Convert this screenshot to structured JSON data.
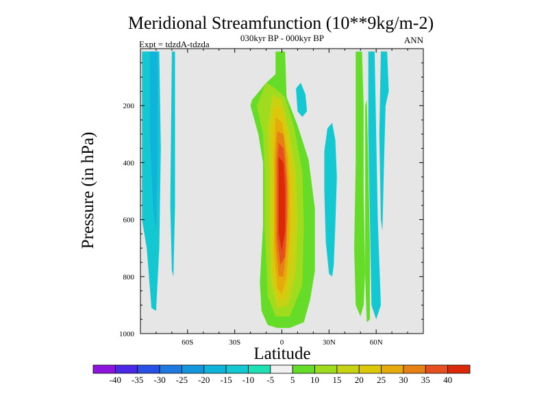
{
  "chart_data": {
    "type": "heatmap",
    "title": "Meridional Streamfunction (10**9kg/m-2)",
    "subtitle": "030kyr BP - 000kyr BP",
    "left_label": "Expt = tdzdA-tdzda",
    "right_label": "ANN",
    "xlabel": "Latitude",
    "ylabel": "Pressure (in hPa)",
    "x_range": [
      -90,
      90
    ],
    "y_range": [
      0,
      1000
    ],
    "y_direction": "down",
    "x_ticks": [
      {
        "value": -60,
        "label": "60S"
      },
      {
        "value": -30,
        "label": "30S"
      },
      {
        "value": 0,
        "label": "0"
      },
      {
        "value": 30,
        "label": "30N"
      },
      {
        "value": 60,
        "label": "60N"
      }
    ],
    "y_ticks": [
      {
        "value": 200,
        "label": "200"
      },
      {
        "value": 400,
        "label": "400"
      },
      {
        "value": 600,
        "label": "600"
      },
      {
        "value": 800,
        "label": "800"
      },
      {
        "value": 1000,
        "label": "1000"
      }
    ],
    "background_color": "#e6e6e6",
    "colorbar": {
      "labels": [
        "-40",
        "-35",
        "-30",
        "-25",
        "-20",
        "-15",
        "-10",
        "-5",
        "5",
        "10",
        "15",
        "20",
        "25",
        "30",
        "35",
        "40"
      ],
      "colors": [
        "#8c14dc",
        "#4b28e6",
        "#2850e6",
        "#1e7ae0",
        "#1496dc",
        "#0fb4dc",
        "#14c8d2",
        "#1ee0b4",
        "#f0f0f0",
        "#64dc28",
        "#a0dc1e",
        "#c8d214",
        "#dcc80a",
        "#e6aa0a",
        "#e68214",
        "#e6501e",
        "#dc280a"
      ]
    },
    "field_regions": [
      {
        "name": "sh-band-west",
        "value": -10,
        "points": [
          [
            -89,
            10
          ],
          [
            -78,
            10
          ],
          [
            -77,
            350
          ],
          [
            -78,
            700
          ],
          [
            -80,
            920
          ],
          [
            -83,
            910
          ],
          [
            -86,
            700
          ],
          [
            -89,
            600
          ]
        ]
      },
      {
        "name": "sh-band-west-core",
        "value": -15,
        "points": [
          [
            -84,
            10
          ],
          [
            -79,
            10
          ],
          [
            -79,
            400
          ],
          [
            -80,
            640
          ],
          [
            -82,
            560
          ],
          [
            -84,
            300
          ]
        ]
      },
      {
        "name": "sh-band-60s",
        "value": -10,
        "points": [
          [
            -70,
            10
          ],
          [
            -68,
            10
          ],
          [
            -68,
            550
          ],
          [
            -69,
            800
          ],
          [
            -70,
            780
          ],
          [
            -71,
            550
          ]
        ]
      },
      {
        "name": "tropical-cell",
        "value": 5,
        "points": [
          [
            -4,
            10
          ],
          [
            2,
            10
          ],
          [
            3,
            170
          ],
          [
            10,
            270
          ],
          [
            17,
            390
          ],
          [
            21,
            560
          ],
          [
            21,
            780
          ],
          [
            18,
            880
          ],
          [
            14,
            960
          ],
          [
            5,
            980
          ],
          [
            -3,
            980
          ],
          [
            -9,
            970
          ],
          [
            -13,
            920
          ],
          [
            -14,
            820
          ],
          [
            -12,
            620
          ],
          [
            -12,
            400
          ],
          [
            -15,
            300
          ],
          [
            -20,
            200
          ],
          [
            -19,
            180
          ],
          [
            -10,
            120
          ],
          [
            -4,
            90
          ]
        ]
      },
      {
        "name": "tropical-cell-10",
        "value": 10,
        "points": [
          [
            -10,
            120
          ],
          [
            -4,
            140
          ],
          [
            2,
            170
          ],
          [
            8,
            280
          ],
          [
            13,
            430
          ],
          [
            14,
            620
          ],
          [
            13,
            830
          ],
          [
            5,
            940
          ],
          [
            -4,
            940
          ],
          [
            -9,
            870
          ],
          [
            -11,
            620
          ],
          [
            -11,
            420
          ],
          [
            -12,
            300
          ],
          [
            -16,
            200
          ]
        ]
      },
      {
        "name": "tropical-cell-15",
        "value": 15,
        "points": [
          [
            -6,
            160
          ],
          [
            0,
            180
          ],
          [
            5,
            300
          ],
          [
            9,
            440
          ],
          [
            10,
            600
          ],
          [
            9,
            780
          ],
          [
            4,
            900
          ],
          [
            -3,
            910
          ],
          [
            -7,
            820
          ],
          [
            -8,
            620
          ],
          [
            -8,
            430
          ],
          [
            -9,
            280
          ]
        ]
      },
      {
        "name": "tropical-cell-20",
        "value": 20,
        "points": [
          [
            -5,
            200
          ],
          [
            0,
            210
          ],
          [
            4,
            320
          ],
          [
            7,
            450
          ],
          [
            7,
            620
          ],
          [
            5,
            780
          ],
          [
            2,
            880
          ],
          [
            -2,
            880
          ],
          [
            -6,
            780
          ],
          [
            -6,
            600
          ],
          [
            -6,
            430
          ],
          [
            -7,
            280
          ]
        ]
      },
      {
        "name": "tropical-cell-25",
        "value": 25,
        "points": [
          [
            -4,
            240
          ],
          [
            0,
            260
          ],
          [
            4,
            380
          ],
          [
            5,
            500
          ],
          [
            5,
            650
          ],
          [
            3,
            800
          ],
          [
            0,
            860
          ],
          [
            -3,
            840
          ],
          [
            -5,
            700
          ],
          [
            -5,
            520
          ],
          [
            -5,
            380
          ]
        ]
      },
      {
        "name": "tropical-cell-30",
        "value": 30,
        "points": [
          [
            -3,
            290
          ],
          [
            1,
            300
          ],
          [
            3,
            400
          ],
          [
            4,
            530
          ],
          [
            3,
            690
          ],
          [
            1,
            800
          ],
          [
            -2,
            800
          ],
          [
            -4,
            680
          ],
          [
            -4,
            520
          ],
          [
            -4,
            390
          ]
        ]
      },
      {
        "name": "tropical-cell-35",
        "value": 35,
        "points": [
          [
            -2,
            330
          ],
          [
            1,
            350
          ],
          [
            3,
            460
          ],
          [
            3,
            600
          ],
          [
            2,
            730
          ],
          [
            -1,
            760
          ],
          [
            -3,
            660
          ],
          [
            -3,
            500
          ],
          [
            -3,
            400
          ]
        ]
      },
      {
        "name": "tropical-cell-40",
        "value": 40,
        "points": [
          [
            -2,
            380
          ],
          [
            1,
            400
          ],
          [
            2,
            500
          ],
          [
            2,
            640
          ],
          [
            0,
            710
          ],
          [
            -2,
            650
          ],
          [
            -2,
            520
          ]
        ]
      },
      {
        "name": "upper-patch-15n",
        "value": -10,
        "points": [
          [
            9,
            140
          ],
          [
            12,
            120
          ],
          [
            15,
            160
          ],
          [
            16,
            220
          ],
          [
            13,
            240
          ],
          [
            10,
            220
          ]
        ]
      },
      {
        "name": "band-30n",
        "value": -10,
        "points": [
          [
            29,
            280
          ],
          [
            32,
            260
          ],
          [
            34,
            320
          ],
          [
            35,
            450
          ],
          [
            34,
            620
          ],
          [
            33,
            760
          ],
          [
            32,
            800
          ],
          [
            30,
            790
          ],
          [
            28,
            680
          ],
          [
            27,
            500
          ],
          [
            27,
            360
          ]
        ]
      },
      {
        "name": "nh-band-50n",
        "value": 5,
        "points": [
          [
            47,
            10
          ],
          [
            51,
            10
          ],
          [
            52,
            200
          ],
          [
            52,
            500
          ],
          [
            53,
            780
          ],
          [
            52,
            900
          ],
          [
            50,
            940
          ],
          [
            47,
            900
          ],
          [
            46,
            700
          ],
          [
            47,
            400
          ]
        ]
      },
      {
        "name": "nh-band-55n-green",
        "value": 5,
        "points": [
          [
            53,
            200
          ],
          [
            54,
            180
          ],
          [
            55,
            400
          ],
          [
            56,
            700
          ],
          [
            56,
            950
          ],
          [
            54,
            960
          ],
          [
            53,
            800
          ]
        ]
      },
      {
        "name": "nh-band-60n",
        "value": -10,
        "points": [
          [
            55,
            10
          ],
          [
            59,
            10
          ],
          [
            60,
            300
          ],
          [
            61,
            600
          ],
          [
            63,
            900
          ],
          [
            60,
            950
          ],
          [
            57,
            900
          ],
          [
            56,
            600
          ],
          [
            55,
            300
          ]
        ]
      },
      {
        "name": "nh-band-65n",
        "value": -10,
        "points": [
          [
            63,
            10
          ],
          [
            67,
            10
          ],
          [
            68,
            150
          ],
          [
            66,
            200
          ],
          [
            65,
            400
          ],
          [
            64,
            640
          ],
          [
            63,
            600
          ],
          [
            62,
            300
          ]
        ]
      }
    ]
  }
}
